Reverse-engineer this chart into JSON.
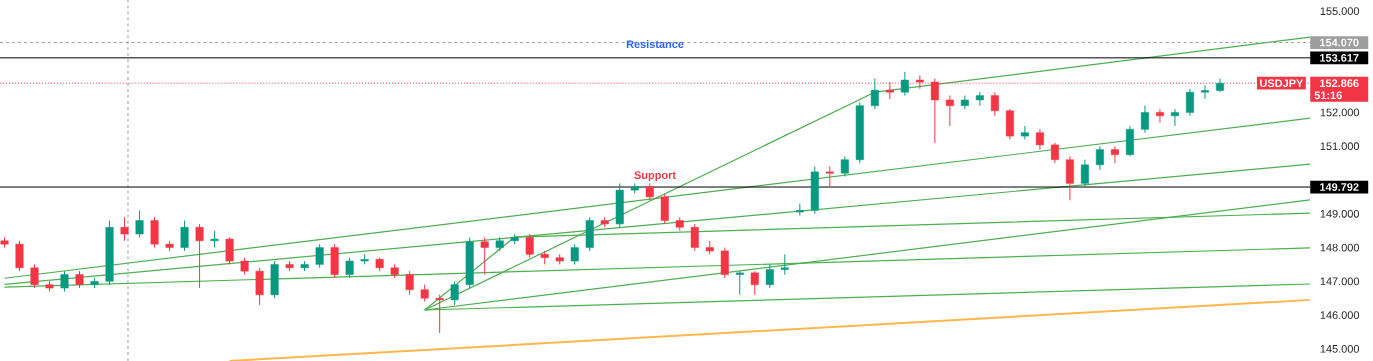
{
  "chart_data": {
    "type": "candlestick",
    "categories": [
      null,
      null,
      null,
      null,
      null,
      null,
      null,
      null,
      null,
      null,
      null,
      null,
      null,
      null,
      null,
      null,
      null,
      null,
      null,
      null,
      null,
      null,
      null,
      null,
      null,
      null,
      null,
      null,
      null,
      null,
      null,
      null,
      null,
      null,
      null,
      null,
      null,
      null,
      null,
      null,
      null,
      null,
      null,
      null,
      null,
      null,
      null,
      null,
      null,
      null,
      null,
      null,
      null,
      null,
      null,
      null,
      null,
      null,
      null,
      null,
      null,
      null,
      null,
      null,
      null,
      null,
      null,
      null,
      null,
      null,
      null,
      null,
      null,
      null,
      null,
      null,
      null,
      null,
      null,
      null,
      null,
      null,
      null,
      null,
      null,
      null,
      null,
      null
    ],
    "ohlc": [
      [
        148.2,
        148.3,
        148.0,
        148.1
      ],
      [
        148.1,
        148.2,
        147.3,
        147.4
      ],
      [
        147.4,
        147.5,
        146.8,
        146.9
      ],
      [
        146.9,
        147.0,
        146.7,
        146.8
      ],
      [
        146.8,
        147.3,
        146.7,
        147.2
      ],
      [
        147.2,
        147.3,
        146.8,
        146.9
      ],
      [
        146.9,
        147.1,
        146.8,
        147.0
      ],
      [
        147.0,
        148.8,
        146.9,
        148.6
      ],
      [
        148.6,
        148.9,
        148.2,
        148.4
      ],
      [
        148.4,
        149.1,
        148.3,
        148.8
      ],
      [
        148.8,
        148.9,
        148.0,
        148.1
      ],
      [
        148.1,
        148.2,
        147.9,
        148.0
      ],
      [
        148.0,
        148.8,
        147.9,
        148.6
      ],
      [
        148.6,
        148.7,
        146.8,
        148.2
      ],
      [
        148.2,
        148.5,
        148.0,
        148.25
      ],
      [
        148.25,
        148.3,
        147.5,
        147.6
      ],
      [
        147.6,
        147.7,
        147.2,
        147.3
      ],
      [
        147.3,
        147.4,
        146.3,
        146.6
      ],
      [
        146.6,
        147.6,
        146.5,
        147.5
      ],
      [
        147.5,
        147.6,
        147.3,
        147.4
      ],
      [
        147.4,
        147.6,
        147.3,
        147.5
      ],
      [
        147.5,
        148.1,
        147.4,
        148.0
      ],
      [
        148.0,
        148.1,
        147.1,
        147.2
      ],
      [
        147.2,
        147.7,
        147.1,
        147.6
      ],
      [
        147.6,
        147.8,
        147.5,
        147.65
      ],
      [
        147.65,
        147.7,
        147.3,
        147.4
      ],
      [
        147.4,
        147.5,
        147.1,
        147.2
      ],
      [
        147.2,
        147.3,
        146.6,
        146.75
      ],
      [
        146.75,
        146.9,
        146.4,
        146.5
      ],
      [
        146.5,
        146.6,
        145.47,
        146.45
      ],
      [
        146.45,
        147.0,
        146.3,
        146.9
      ],
      [
        146.9,
        148.3,
        146.8,
        148.17
      ],
      [
        148.17,
        148.3,
        147.2,
        148.0
      ],
      [
        148.0,
        148.3,
        147.9,
        148.2
      ],
      [
        148.2,
        148.4,
        148.1,
        148.3
      ],
      [
        148.3,
        148.4,
        147.7,
        147.8
      ],
      [
        147.8,
        147.9,
        147.5,
        147.7
      ],
      [
        147.7,
        147.8,
        147.5,
        147.6
      ],
      [
        147.6,
        148.1,
        147.5,
        148.0
      ],
      [
        148.0,
        148.9,
        147.9,
        148.8
      ],
      [
        148.8,
        148.9,
        148.6,
        148.7
      ],
      [
        148.7,
        149.9,
        148.6,
        149.7
      ],
      [
        149.7,
        149.9,
        149.6,
        149.8
      ],
      [
        149.8,
        149.9,
        149.4,
        149.5
      ],
      [
        149.5,
        149.6,
        148.7,
        148.8
      ],
      [
        148.8,
        148.9,
        148.5,
        148.6
      ],
      [
        148.6,
        148.7,
        147.9,
        148.0
      ],
      [
        148.0,
        148.2,
        147.8,
        147.9
      ],
      [
        147.9,
        148.0,
        147.1,
        147.2
      ],
      [
        147.2,
        147.3,
        146.6,
        147.25
      ],
      [
        147.25,
        147.3,
        146.6,
        146.9
      ],
      [
        146.9,
        147.5,
        146.8,
        147.35
      ],
      [
        147.35,
        147.8,
        147.2,
        147.4
      ],
      [
        149.05,
        149.3,
        148.95,
        149.1
      ],
      [
        149.1,
        150.4,
        149.0,
        150.24
      ],
      [
        150.24,
        150.4,
        149.8,
        150.2
      ],
      [
        150.2,
        150.7,
        150.1,
        150.6
      ],
      [
        150.6,
        152.3,
        150.5,
        152.2
      ],
      [
        152.2,
        153.0,
        152.1,
        152.66
      ],
      [
        152.66,
        152.9,
        152.4,
        152.6
      ],
      [
        152.6,
        153.2,
        152.5,
        152.96
      ],
      [
        152.96,
        153.1,
        152.7,
        152.9
      ],
      [
        152.9,
        153.0,
        151.1,
        152.37
      ],
      [
        152.37,
        152.5,
        151.6,
        152.2
      ],
      [
        152.2,
        152.5,
        152.1,
        152.37
      ],
      [
        152.37,
        152.6,
        152.2,
        152.5
      ],
      [
        152.5,
        152.6,
        151.9,
        152.05
      ],
      [
        152.05,
        152.1,
        151.2,
        151.3
      ],
      [
        151.3,
        151.6,
        151.2,
        151.4
      ],
      [
        151.4,
        151.5,
        150.9,
        151.04
      ],
      [
        151.04,
        151.1,
        150.5,
        150.6
      ],
      [
        150.6,
        150.7,
        149.4,
        149.9
      ],
      [
        149.9,
        150.6,
        149.8,
        150.45
      ],
      [
        150.45,
        151.0,
        150.3,
        150.9
      ],
      [
        150.9,
        151.0,
        150.5,
        150.75
      ],
      [
        150.75,
        151.6,
        150.7,
        151.5
      ],
      [
        151.5,
        152.2,
        151.4,
        152.0
      ],
      [
        152.0,
        152.1,
        151.7,
        151.9
      ],
      [
        151.9,
        152.1,
        151.6,
        152.0
      ],
      [
        152.0,
        152.7,
        151.9,
        152.6
      ],
      [
        152.6,
        152.8,
        152.4,
        152.65
      ],
      [
        152.65,
        153.0,
        152.6,
        152.866
      ],
      null,
      null,
      null,
      null,
      null,
      null
    ],
    "colors": [
      "#f23645",
      "#f23645",
      "#f23645",
      "#f23645",
      "#089981",
      "#f23645",
      "#089981",
      "#089981",
      "#f23645",
      "#089981",
      "#f23645",
      "#f23645",
      "#089981",
      "#f23645",
      "#089981",
      "#f23645",
      "#f23645",
      "#f23645",
      "#089981",
      "#f23645",
      "#089981",
      "#089981",
      "#f23645",
      "#089981",
      "#089981",
      "#f23645",
      "#f23645",
      "#f23645",
      "#f23645",
      "#f23645",
      "#089981",
      "#089981",
      "#f23645",
      "#089981",
      "#089981",
      "#f23645",
      "#f23645",
      "#f23645",
      "#089981",
      "#089981",
      "#f23645",
      "#089981",
      "#089981",
      "#f23645",
      "#f23645",
      "#f23645",
      "#f23645",
      "#f23645",
      "#f23645",
      "#089981",
      "#f23645",
      "#089981",
      "#089981",
      "#089981",
      "#089981",
      "#f23645",
      "#089981",
      "#089981",
      "#089981",
      "#f23645",
      "#089981",
      "#f23645",
      "#f23645",
      "#f23645",
      "#089981",
      "#089981",
      "#f23645",
      "#f23645",
      "#089981",
      "#f23645",
      "#f23645",
      "#f23645",
      "#089981",
      "#089981",
      "#f23645",
      "#089981",
      "#089981",
      "#f23645",
      "#089981",
      "#089981",
      "#089981",
      "#089981",
      null,
      null,
      null,
      null,
      null,
      null
    ],
    "series": [
      {
        "type": "line",
        "color": "#ffb74d",
        "values": [
          null,
          null,
          null,
          null,
          null,
          null,
          null,
          null,
          null,
          null,
          null,
          null,
          null,
          null,
          null,
          144.64,
          null,
          null,
          null,
          null,
          null,
          null,
          null,
          null,
          null,
          null,
          null,
          null,
          null,
          null,
          null,
          null,
          null,
          null,
          null,
          null,
          null,
          null,
          null,
          null,
          null,
          null,
          null,
          null,
          null,
          null,
          null,
          null,
          null,
          null,
          null,
          null,
          null,
          null,
          null,
          null,
          null,
          null,
          null,
          null,
          null,
          null,
          null,
          null,
          null,
          null,
          null,
          null,
          null,
          null,
          null,
          null,
          null,
          null,
          null,
          null,
          null,
          null,
          null,
          null,
          null,
          null,
          null,
          null,
          null,
          null,
          null,
          146.45
        ]
      },
      {
        "type": "line",
        "color": "#4caf50",
        "values": [
          147.09,
          null,
          null,
          null,
          null,
          null,
          null,
          null,
          null,
          null,
          null,
          null,
          null,
          null,
          null,
          null,
          null,
          null,
          null,
          null,
          null,
          null,
          null,
          null,
          null,
          null,
          null,
          null,
          null,
          null,
          null,
          null,
          null,
          null,
          null,
          null,
          null,
          null,
          null,
          null,
          null,
          null,
          null,
          null,
          null,
          null,
          null,
          null,
          null,
          null,
          null,
          null,
          null,
          null,
          null,
          null,
          null,
          null,
          null,
          null,
          null,
          null,
          null,
          null,
          null,
          null,
          null,
          null,
          null,
          null,
          null,
          null,
          null,
          null,
          null,
          null,
          null,
          null,
          null,
          null,
          null,
          null,
          null,
          null,
          null,
          null,
          null,
          151.83
        ]
      },
      {
        "type": "line",
        "color": "#4caf50",
        "values": [
          146.91,
          null,
          null,
          null,
          null,
          null,
          null,
          null,
          null,
          null,
          null,
          null,
          null,
          null,
          null,
          null,
          null,
          null,
          null,
          null,
          null,
          null,
          null,
          null,
          null,
          null,
          null,
          null,
          null,
          null,
          null,
          null,
          null,
          null,
          null,
          null,
          null,
          null,
          null,
          null,
          null,
          null,
          null,
          null,
          null,
          null,
          null,
          null,
          null,
          null,
          null,
          null,
          null,
          null,
          null,
          null,
          null,
          null,
          null,
          null,
          null,
          null,
          null,
          null,
          null,
          null,
          null,
          null,
          null,
          null,
          null,
          null,
          null,
          null,
          null,
          null,
          null,
          null,
          null,
          null,
          null,
          null,
          null,
          null,
          null,
          null,
          null,
          150.47
        ]
      },
      {
        "type": "line",
        "color": "#4caf50",
        "values": [
          146.83,
          null,
          null,
          null,
          null,
          null,
          null,
          null,
          null,
          null,
          null,
          null,
          null,
          null,
          null,
          null,
          null,
          null,
          null,
          null,
          null,
          null,
          null,
          null,
          null,
          null,
          null,
          null,
          null,
          null,
          null,
          null,
          null,
          null,
          null,
          null,
          null,
          null,
          null,
          null,
          null,
          null,
          null,
          null,
          null,
          null,
          null,
          null,
          null,
          null,
          null,
          null,
          null,
          null,
          null,
          null,
          null,
          null,
          null,
          null,
          null,
          null,
          null,
          null,
          null,
          null,
          null,
          null,
          null,
          null,
          null,
          null,
          null,
          null,
          null,
          null,
          null,
          null,
          null,
          null,
          null,
          null,
          null,
          null,
          null,
          null,
          null,
          147.99
        ]
      },
      {
        "type": "line",
        "color": "#4caf50",
        "values": [
          null,
          null,
          null,
          null,
          null,
          null,
          null,
          null,
          null,
          null,
          null,
          null,
          null,
          null,
          null,
          null,
          null,
          null,
          null,
          null,
          null,
          null,
          null,
          null,
          null,
          null,
          null,
          null,
          146.15,
          null,
          null,
          null,
          null,
          null,
          null,
          null,
          null,
          null,
          null,
          null,
          null,
          null,
          null,
          null,
          null,
          null,
          null,
          null,
          null,
          null,
          null,
          null,
          null,
          null,
          null,
          null,
          null,
          null,
          null,
          null,
          null,
          null,
          null,
          null,
          null,
          null,
          null,
          null,
          null,
          null,
          null,
          null,
          null,
          null,
          null,
          null,
          null,
          null,
          null,
          null,
          null,
          null,
          null,
          null,
          null,
          null,
          null,
          149.41
        ]
      },
      {
        "type": "line",
        "color": "#4caf50",
        "values": [
          null,
          null,
          null,
          null,
          null,
          null,
          null,
          null,
          null,
          null,
          null,
          null,
          null,
          null,
          null,
          null,
          null,
          null,
          null,
          null,
          null,
          null,
          null,
          null,
          null,
          null,
          null,
          null,
          146.15,
          null,
          null,
          null,
          null,
          null,
          null,
          null,
          null,
          null,
          null,
          null,
          null,
          null,
          null,
          null,
          null,
          null,
          null,
          null,
          null,
          null,
          null,
          null,
          null,
          null,
          null,
          null,
          null,
          null,
          null,
          null,
          null,
          null,
          null,
          null,
          null,
          null,
          null,
          null,
          null,
          null,
          null,
          null,
          null,
          null,
          null,
          null,
          null,
          null,
          null,
          null,
          null,
          null,
          null,
          null,
          null,
          null,
          null,
          146.92
        ]
      },
      {
        "type": "line",
        "color": "#4caf50",
        "values": [
          null,
          null,
          null,
          null,
          null,
          null,
          null,
          null,
          null,
          null,
          null,
          null,
          null,
          null,
          null,
          null,
          null,
          null,
          null,
          null,
          null,
          null,
          null,
          null,
          null,
          null,
          null,
          null,
          146.15,
          null,
          null,
          null,
          null,
          null,
          148.31,
          null,
          null,
          null,
          null,
          null,
          null,
          null,
          null,
          null,
          null,
          null,
          null,
          null,
          null,
          null,
          null,
          null,
          null,
          null,
          null,
          null,
          null,
          null,
          null,
          null,
          null,
          null,
          null,
          null,
          null,
          null,
          null,
          null,
          null,
          null,
          null,
          null,
          null,
          null,
          null,
          null,
          null,
          null,
          null,
          null,
          null,
          null,
          null,
          null,
          null,
          null,
          null,
          149.02
        ]
      },
      {
        "type": "line",
        "color": "#4caf50",
        "values": [
          null,
          null,
          null,
          null,
          null,
          null,
          null,
          null,
          null,
          null,
          null,
          null,
          null,
          null,
          null,
          null,
          null,
          null,
          null,
          null,
          null,
          null,
          null,
          null,
          null,
          null,
          null,
          null,
          146.15,
          null,
          null,
          null,
          null,
          null,
          null,
          null,
          null,
          null,
          null,
          null,
          null,
          null,
          null,
          null,
          null,
          null,
          null,
          null,
          null,
          null,
          null,
          null,
          null,
          null,
          null,
          null,
          null,
          null,
          152.6,
          null,
          null,
          null,
          null,
          null,
          null,
          null,
          null,
          null,
          null,
          null,
          null,
          null,
          null,
          null,
          null,
          null,
          null,
          null,
          null,
          null,
          null,
          null,
          null,
          null,
          null,
          null,
          null,
          154.23
        ]
      }
    ],
    "ylim": [
      144.64,
      155.33
    ],
    "yticks": [
      {
        "value": 145,
        "label": "145.000"
      },
      {
        "value": 146,
        "label": "146.000"
      },
      {
        "value": 147,
        "label": "147.000"
      },
      {
        "value": 148,
        "label": "148.000"
      },
      {
        "value": 149,
        "label": "149.000"
      },
      {
        "value": 151,
        "label": "151.000"
      },
      {
        "value": 152,
        "label": "152.000"
      },
      {
        "value": 155,
        "label": "155.000"
      }
    ],
    "tick_labels": "y",
    "ref_lines": [
      {
        "axis": "y",
        "value": 154.07,
        "label": "154.070",
        "color": "#9e9e9e",
        "line_style": "dashed"
      },
      {
        "axis": "y",
        "value": 153.617,
        "label": "153.617",
        "color": "#000000",
        "line_style": "solid"
      },
      {
        "axis": "y",
        "value": 149.792,
        "label": "149.792",
        "color": "#000000",
        "line_style": "solid"
      },
      {
        "axis": "y",
        "value": 152.866,
        "label": "152.866",
        "color": "#f23645",
        "line_style": "dotted"
      }
    ],
    "annotations": [
      "Resistance",
      "Support",
      "USDJPY",
      "51:16"
    ]
  }
}
